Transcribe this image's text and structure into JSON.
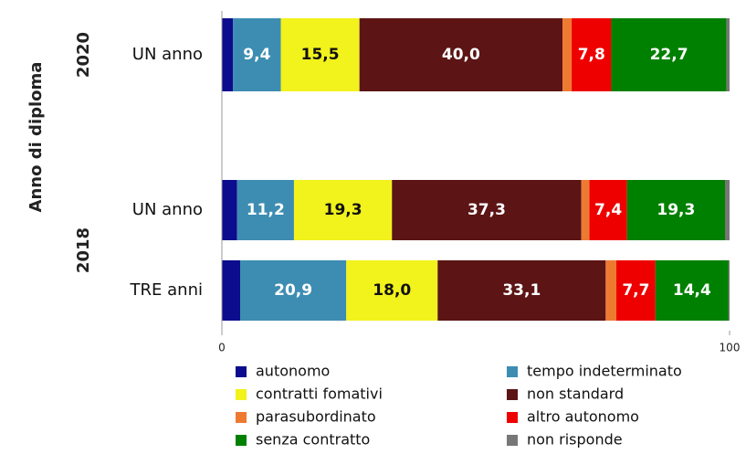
{
  "chart_data": {
    "type": "stacked-barh",
    "ylabel": "Anno di diploma",
    "groups": [
      {
        "name": "2020",
        "size": 1
      },
      {
        "name": "2018",
        "size": 2
      }
    ],
    "categories": [
      "UN anno",
      "UN anno",
      "TRE anni"
    ],
    "xlim": [
      0,
      100
    ],
    "xticks": [
      0,
      100
    ],
    "series": [
      {
        "name": "autonomo",
        "color": "#0c0c8e",
        "values": [
          2.2,
          3.0,
          3.6
        ]
      },
      {
        "name": "tempo indeterminato",
        "color": "#3d8db2",
        "values": [
          9.4,
          11.2,
          20.9
        ],
        "value_labels": [
          "9,4",
          "11,2",
          "20,9"
        ]
      },
      {
        "name": "contratti fomativi",
        "color": "#f2f21c",
        "values": [
          15.5,
          19.3,
          18.0
        ],
        "value_labels": [
          "15,5",
          "19,3",
          "18,0"
        ]
      },
      {
        "name": "non standard",
        "color": "#5c1414",
        "values": [
          40.0,
          37.3,
          33.1
        ],
        "value_labels": [
          "40,0",
          "37,3",
          "33,1"
        ]
      },
      {
        "name": "parasubordinato",
        "color": "#ee7a32",
        "values": [
          1.8,
          1.6,
          2.1
        ]
      },
      {
        "name": "altro autonomo",
        "color": "#ee0000",
        "values": [
          7.8,
          7.4,
          7.7
        ],
        "value_labels": [
          "7,8",
          "7,4",
          "7,7"
        ]
      },
      {
        "name": "senza contratto",
        "color": "#008000",
        "values": [
          22.7,
          19.3,
          14.4
        ],
        "value_labels": [
          "22,7",
          "19,3",
          "14,4"
        ]
      },
      {
        "name": "non risponde",
        "color": "#777777",
        "values": [
          0.6,
          0.9,
          0.2
        ]
      }
    ]
  }
}
